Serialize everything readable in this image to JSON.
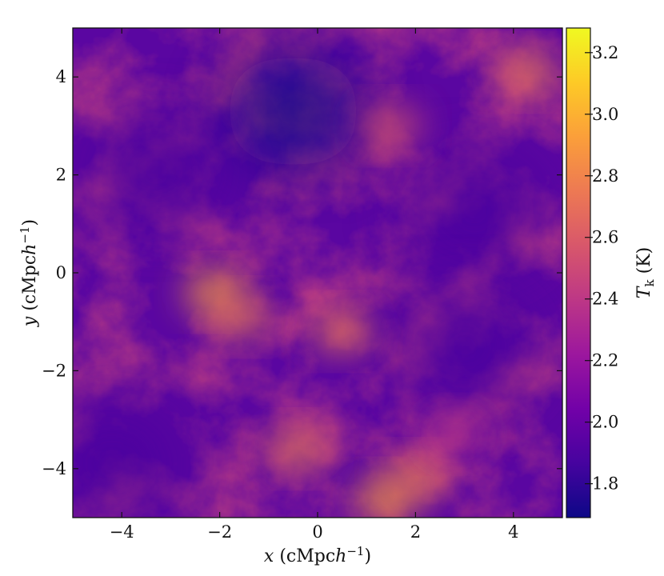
{
  "chart_data": {
    "type": "heatmap",
    "title": "",
    "x_range": [
      -5,
      5
    ],
    "y_range": [
      -5,
      5
    ],
    "x_ticks": [
      -4,
      -2,
      0,
      2,
      4
    ],
    "y_ticks": [
      -4,
      -2,
      0,
      2,
      4
    ],
    "x_tick_labels": [
      "−4",
      "−2",
      "0",
      "2",
      "4"
    ],
    "y_tick_labels": [
      "−4",
      "−2",
      "0",
      "2",
      "4"
    ],
    "xlabel": {
      "var": "x",
      "unit_open": " (cMpc",
      "unit_h": "h",
      "unit_exp": "−1",
      "unit_close": ")"
    },
    "ylabel": {
      "var": "y",
      "unit_open": " (cMpc",
      "unit_h": "h",
      "unit_exp": "−1",
      "unit_close": ")"
    },
    "colorbar": {
      "label_var": "T",
      "label_sub": "k",
      "label_unit": " (K)",
      "range": [
        1.69,
        3.28
      ],
      "ticks": [
        1.8,
        2.0,
        2.2,
        2.4,
        2.6,
        2.8,
        3.0,
        3.2
      ],
      "tick_labels": [
        "1.8",
        "2.0",
        "2.2",
        "2.4",
        "2.6",
        "2.8",
        "3.0",
        "3.2"
      ],
      "colormap": "plasma"
    },
    "colormap_stops": [
      "#0d0887",
      "#46039f",
      "#7201a8",
      "#9c179e",
      "#bd3786",
      "#d8576b",
      "#ed7953",
      "#fb9f3a",
      "#fdca26",
      "#f0f921"
    ],
    "hotspots": [
      {
        "x": -2.1,
        "y": -0.4,
        "value": 3.0
      },
      {
        "x": -1.6,
        "y": -0.9,
        "value": 2.7
      },
      {
        "x": 0.5,
        "y": -1.2,
        "value": 2.75
      },
      {
        "x": 1.4,
        "y": -4.6,
        "value": 3.0
      },
      {
        "x": 2.0,
        "y": -4.2,
        "value": 2.8
      },
      {
        "x": -0.4,
        "y": -3.6,
        "value": 2.75
      },
      {
        "x": 4.3,
        "y": 4.1,
        "value": 2.8
      },
      {
        "x": 1.5,
        "y": 3.0,
        "value": 2.5
      },
      {
        "x": 2.8,
        "y": -3.3,
        "value": 2.45
      }
    ],
    "voids": [
      {
        "x": -0.5,
        "y": 3.3,
        "value": 1.75
      },
      {
        "x": -3.3,
        "y": 2.1,
        "value": 1.8
      },
      {
        "x": 3.2,
        "y": 1.3,
        "value": 1.85
      },
      {
        "x": 3.0,
        "y": -1.5,
        "value": 1.85
      },
      {
        "x": -4.2,
        "y": -3.9,
        "value": 1.85
      }
    ]
  }
}
